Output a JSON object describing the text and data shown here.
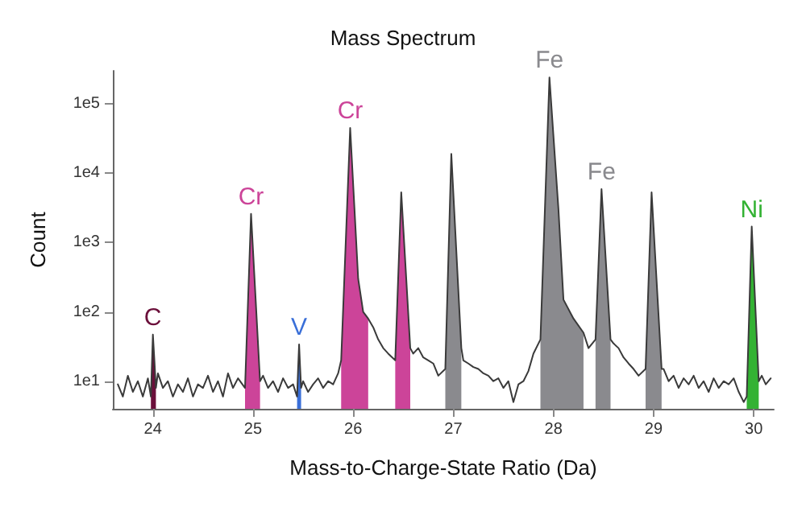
{
  "chart_data": {
    "type": "line",
    "title": "Mass Spectrum",
    "xlabel": "Mass-to-Charge-State Ratio (Da)",
    "ylabel": "Count",
    "log": "y",
    "grid": false,
    "marker": "none",
    "xlim": [
      23.6,
      30.2
    ],
    "xticks": [
      24,
      25,
      26,
      27,
      28,
      29,
      30
    ],
    "ylim": [
      4,
      300000
    ],
    "yticks": [
      {
        "value": 10,
        "label": "1e1"
      },
      {
        "value": 100,
        "label": "1e2"
      },
      {
        "value": 1000,
        "label": "1e3"
      },
      {
        "value": 10000,
        "label": "1e4"
      },
      {
        "value": 100000,
        "label": "1e5"
      }
    ],
    "series": [
      {
        "color": "#3a3a3a",
        "x": [
          23.65,
          23.7,
          23.75,
          23.8,
          23.85,
          23.9,
          23.95,
          23.98,
          23.99,
          24.0,
          24.015,
          24.03,
          24.05,
          24.1,
          24.15,
          24.2,
          24.25,
          24.3,
          24.35,
          24.4,
          24.45,
          24.5,
          24.55,
          24.6,
          24.65,
          24.7,
          24.75,
          24.8,
          24.85,
          24.92,
          24.98,
          25.07,
          25.1,
          25.15,
          25.2,
          25.25,
          25.3,
          25.35,
          25.4,
          25.44,
          25.45,
          25.46,
          25.47,
          25.48,
          25.5,
          25.55,
          25.6,
          25.65,
          25.7,
          25.75,
          25.8,
          25.85,
          25.88,
          25.97,
          26.05,
          26.1,
          26.15,
          26.2,
          26.25,
          26.3,
          26.35,
          26.42,
          26.48,
          26.57,
          26.6,
          26.65,
          26.7,
          26.75,
          26.8,
          26.85,
          26.92,
          26.98,
          27.08,
          27.1,
          27.15,
          27.2,
          27.25,
          27.3,
          27.35,
          27.4,
          27.45,
          27.5,
          27.55,
          27.6,
          27.65,
          27.7,
          27.75,
          27.8,
          27.87,
          27.96,
          28.05,
          28.1,
          28.2,
          28.3,
          28.35,
          28.42,
          28.48,
          28.57,
          28.6,
          28.65,
          28.7,
          28.75,
          28.8,
          28.85,
          28.92,
          28.98,
          29.08,
          29.1,
          29.15,
          29.2,
          29.25,
          29.3,
          29.35,
          29.4,
          29.45,
          29.5,
          29.55,
          29.6,
          29.65,
          29.7,
          29.75,
          29.8,
          29.85,
          29.9,
          29.93,
          29.955,
          29.98,
          30.015,
          30.05,
          30.08,
          30.12,
          30.17
        ],
        "values": [
          9,
          6,
          12,
          7,
          10,
          6,
          11,
          6,
          17,
          47,
          20,
          8,
          13,
          8,
          10,
          6,
          9,
          7,
          11,
          6,
          9,
          8,
          12,
          7,
          10,
          6,
          13,
          8,
          11,
          8,
          2600,
          10,
          12,
          8,
          10,
          7,
          11,
          8,
          9,
          6,
          15,
          34,
          16,
          8,
          10,
          7,
          9,
          11,
          8,
          10,
          9,
          13,
          20,
          45000,
          300,
          100,
          80,
          60,
          40,
          30,
          25,
          20,
          5300,
          30,
          25,
          30,
          22,
          20,
          18,
          12,
          15,
          19000,
          30,
          20,
          18,
          16,
          15,
          13,
          12,
          10,
          11,
          8,
          10,
          5,
          9,
          10,
          14,
          25,
          40,
          240000,
          3000,
          150,
          80,
          50,
          30,
          40,
          5900,
          40,
          35,
          30,
          22,
          18,
          15,
          12,
          15,
          5300,
          15,
          15,
          10,
          12,
          8,
          11,
          9,
          12,
          8,
          10,
          7,
          11,
          8,
          10,
          9,
          11,
          7,
          5,
          6,
          100,
          1700,
          130,
          10,
          12,
          9,
          11
        ]
      },
      {
        "type": "area",
        "name": "C",
        "color": "#6b0f3a",
        "x": [
          23.98,
          23.99,
          24.0,
          24.015,
          24.03
        ],
        "values": [
          6,
          17,
          47,
          20,
          8
        ]
      },
      {
        "type": "area",
        "name": "Cr",
        "color": "#cc4499",
        "x": [
          24.92,
          24.98,
          25.07
        ],
        "values": [
          8,
          2600,
          10
        ]
      },
      {
        "type": "area",
        "name": "V",
        "color": "#3a6fd8",
        "x": [
          25.44,
          25.45,
          25.46,
          25.47,
          25.48
        ],
        "values": [
          6,
          15,
          34,
          16,
          8
        ]
      },
      {
        "type": "area",
        "name": "Cr",
        "color": "#cc4499",
        "x": [
          25.88,
          25.97,
          26.05,
          26.1,
          26.15
        ],
        "values": [
          20,
          45000,
          300,
          100,
          80
        ]
      },
      {
        "type": "area",
        "color": "#cc4499",
        "x": [
          26.42,
          26.48,
          26.57
        ],
        "values": [
          20,
          5300,
          30
        ]
      },
      {
        "type": "area",
        "color": "#8a8a8e",
        "x": [
          26.92,
          26.98,
          27.08
        ],
        "values": [
          15,
          19000,
          30
        ]
      },
      {
        "type": "area",
        "name": "Fe",
        "color": "#8a8a8e",
        "x": [
          27.87,
          27.96,
          28.05,
          28.1,
          28.2,
          28.3
        ],
        "values": [
          40,
          240000,
          3000,
          150,
          80,
          50
        ]
      },
      {
        "type": "area",
        "name": "Fe",
        "color": "#8a8a8e",
        "x": [
          28.42,
          28.48,
          28.57
        ],
        "values": [
          40,
          5900,
          40
        ]
      },
      {
        "type": "area",
        "color": "#8a8a8e",
        "x": [
          28.92,
          28.98,
          29.08
        ],
        "values": [
          15,
          5300,
          15
        ]
      },
      {
        "type": "area",
        "name": "Ni",
        "color": "#33b233",
        "x": [
          29.93,
          29.955,
          29.98,
          30.015,
          30.05
        ],
        "values": [
          6,
          100,
          1700,
          130,
          10
        ]
      }
    ]
  }
}
